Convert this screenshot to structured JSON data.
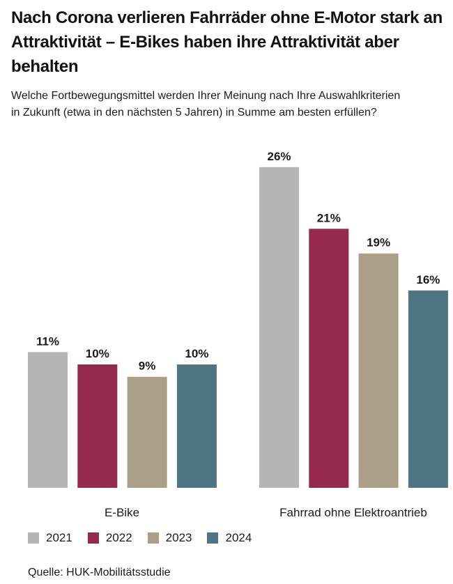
{
  "header": {
    "title": "Nach Corona verlieren Fahrräder ohne E-Motor stark an Attraktivität – E-Bikes haben ihre Attraktivität aber behalten",
    "subtitle_line1": "Welche Fortbewegungsmittel werden Ihrer Meinung nach Ihre Auswahlkriterien",
    "subtitle_line2": "in Zukunft (etwa in den nächsten 5 Jahren) in Summe am besten erfüllen?"
  },
  "source": "Quelle: HUK-Mobilitätsstudie",
  "chart_data": {
    "type": "bar",
    "categories": [
      "E-Bike",
      "Fahrrad ohne Elektroantrieb"
    ],
    "series": [
      {
        "name": "2021",
        "color": "#b5b5b5",
        "values": [
          11,
          26
        ],
        "labels": [
          "11%",
          "26%"
        ]
      },
      {
        "name": "2022",
        "color": "#962a4c",
        "values": [
          10,
          21
        ],
        "labels": [
          "10%",
          "21%"
        ]
      },
      {
        "name": "2023",
        "color": "#ab9f88",
        "values": [
          9,
          19
        ],
        "labels": [
          "9%",
          "19%"
        ]
      },
      {
        "name": "2024",
        "color": "#4e7581",
        "values": [
          10,
          16
        ],
        "labels": [
          "10%",
          "16%"
        ]
      }
    ],
    "unit": "%",
    "grid": false,
    "legend": "bottom-left"
  }
}
